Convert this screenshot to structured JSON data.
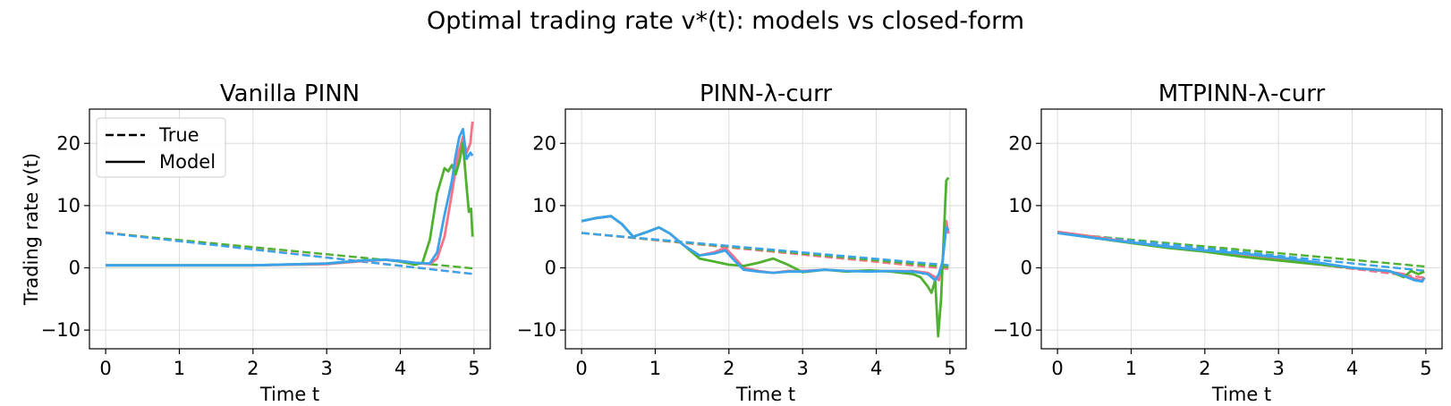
{
  "figure": {
    "suptitle": "Optimal trading rate v*(t): models vs closed-form"
  },
  "legend": {
    "true_label": "True",
    "model_label": "Model"
  },
  "colors": {
    "c1": "#f77189",
    "c2": "#50b131",
    "c3": "#3ba3ec"
  },
  "chart_data": [
    {
      "type": "line",
      "title": "Vanilla PINN",
      "xlabel": "Time t",
      "ylabel": "Trading rate v(t)",
      "xlim": [
        -0.22,
        5.22
      ],
      "ylim": [
        -13,
        25.5
      ],
      "xticks": [
        0,
        1,
        2,
        3,
        4,
        5
      ],
      "yticks": [
        -10,
        0,
        10,
        20
      ],
      "grid": true,
      "legend": "top-left",
      "series": [
        {
          "kind": "true",
          "color": "#f77189",
          "x": [
            0,
            5
          ],
          "y": [
            5.7,
            -1.0
          ]
        },
        {
          "kind": "true",
          "color": "#50b131",
          "x": [
            0,
            5
          ],
          "y": [
            5.6,
            -0.1
          ]
        },
        {
          "kind": "true",
          "color": "#3ba3ec",
          "x": [
            0,
            5
          ],
          "y": [
            5.6,
            -1.0
          ]
        },
        {
          "kind": "model",
          "color": "#f77189",
          "x": [
            0,
            1,
            2,
            3,
            3.5,
            3.8,
            4.0,
            4.2,
            4.4,
            4.5,
            4.6,
            4.7,
            4.78,
            4.85,
            4.9,
            4.95,
            4.98
          ],
          "y": [
            0.4,
            0.4,
            0.4,
            0.6,
            1.1,
            1.3,
            1.1,
            0.8,
            0.6,
            1.5,
            5.0,
            12.0,
            18.0,
            21.0,
            18.5,
            20.0,
            23.5
          ]
        },
        {
          "kind": "model",
          "color": "#50b131",
          "x": [
            0,
            1,
            2,
            3,
            3.5,
            3.8,
            4.0,
            4.2,
            4.3,
            4.4,
            4.5,
            4.55,
            4.6,
            4.65,
            4.7,
            4.75,
            4.8,
            4.85,
            4.9,
            4.93,
            4.96,
            4.98
          ],
          "y": [
            0.4,
            0.4,
            0.4,
            0.7,
            1.2,
            1.3,
            1.0,
            0.5,
            0.8,
            4.5,
            12.0,
            14.0,
            16.0,
            15.5,
            16.5,
            15.0,
            17.0,
            20.0,
            13.0,
            9.0,
            9.5,
            5.0
          ]
        },
        {
          "kind": "model",
          "color": "#3ba3ec",
          "x": [
            0,
            1,
            2,
            3,
            3.5,
            3.8,
            4.0,
            4.2,
            4.4,
            4.5,
            4.6,
            4.7,
            4.75,
            4.8,
            4.85,
            4.9,
            4.95,
            4.98
          ],
          "y": [
            0.4,
            0.4,
            0.4,
            0.7,
            1.2,
            1.3,
            1.1,
            0.8,
            0.7,
            2.5,
            8.5,
            14.0,
            18.0,
            21.0,
            22.3,
            17.5,
            18.5,
            18.0
          ]
        }
      ]
    },
    {
      "type": "line",
      "title": "PINN-λ-curr",
      "xlabel": "Time t",
      "ylabel": "",
      "xlim": [
        -0.22,
        5.22
      ],
      "ylim": [
        -13,
        25.5
      ],
      "xticks": [
        0,
        1,
        2,
        3,
        4,
        5
      ],
      "yticks": [
        -10,
        0,
        10,
        20
      ],
      "grid": true,
      "legend": "",
      "series": [
        {
          "kind": "true",
          "color": "#f77189",
          "x": [
            0,
            5
          ],
          "y": [
            5.6,
            -0.2
          ]
        },
        {
          "kind": "true",
          "color": "#50b131",
          "x": [
            0,
            5
          ],
          "y": [
            5.6,
            0.1
          ]
        },
        {
          "kind": "true",
          "color": "#3ba3ec",
          "x": [
            0,
            5
          ],
          "y": [
            5.6,
            0.4
          ]
        },
        {
          "kind": "model",
          "color": "#f77189",
          "x": [
            0,
            0.2,
            0.4,
            0.55,
            0.7,
            0.9,
            1.05,
            1.2,
            1.4,
            1.6,
            1.8,
            1.95,
            2.05,
            2.2,
            2.4,
            2.6,
            2.8,
            3.0,
            3.3,
            3.6,
            3.9,
            4.2,
            4.5,
            4.7,
            4.8,
            4.85,
            4.9,
            4.95,
            4.98
          ],
          "y": [
            7.5,
            8.0,
            8.3,
            7.0,
            5.0,
            5.8,
            6.5,
            5.5,
            3.5,
            2.0,
            2.5,
            3.2,
            2.0,
            0.0,
            -0.5,
            -0.8,
            -0.5,
            -0.5,
            -0.3,
            -0.5,
            -0.5,
            -0.5,
            -0.5,
            -0.8,
            -1.5,
            -2.0,
            1.0,
            7.5,
            5.5
          ]
        },
        {
          "kind": "model",
          "color": "#50b131",
          "x": [
            0,
            0.2,
            0.4,
            0.55,
            0.7,
            0.9,
            1.05,
            1.2,
            1.4,
            1.6,
            1.8,
            2.0,
            2.2,
            2.4,
            2.6,
            2.8,
            3.0,
            3.3,
            3.6,
            3.9,
            4.2,
            4.5,
            4.6,
            4.7,
            4.75,
            4.8,
            4.84,
            4.88,
            4.92,
            4.95,
            4.98
          ],
          "y": [
            7.5,
            8.0,
            8.3,
            7.0,
            5.0,
            5.8,
            6.5,
            5.5,
            3.5,
            1.5,
            1.0,
            0.5,
            0.3,
            0.8,
            1.5,
            0.5,
            -0.7,
            -0.3,
            -0.6,
            -0.4,
            -0.6,
            -1.0,
            -1.5,
            -3.0,
            -4.0,
            -2.0,
            -11.0,
            -5.0,
            6.0,
            14.0,
            14.5
          ]
        },
        {
          "kind": "model",
          "color": "#3ba3ec",
          "x": [
            0,
            0.2,
            0.4,
            0.55,
            0.7,
            0.9,
            1.05,
            1.2,
            1.4,
            1.6,
            1.8,
            1.95,
            2.05,
            2.2,
            2.4,
            2.6,
            2.8,
            3.0,
            3.3,
            3.6,
            3.9,
            4.2,
            4.5,
            4.7,
            4.8,
            4.85,
            4.9,
            4.95,
            4.98
          ],
          "y": [
            7.5,
            8.0,
            8.3,
            7.0,
            5.0,
            5.8,
            6.5,
            5.5,
            3.5,
            2.0,
            2.3,
            2.8,
            1.5,
            -0.3,
            -0.6,
            -0.8,
            -0.6,
            -0.6,
            -0.3,
            -0.5,
            -0.6,
            -0.5,
            -0.6,
            -1.0,
            -2.0,
            -1.0,
            1.0,
            6.5,
            6.0
          ]
        }
      ]
    },
    {
      "type": "line",
      "title": "MTPINN-λ-curr",
      "xlabel": "Time t",
      "ylabel": "",
      "xlim": [
        -0.22,
        5.22
      ],
      "ylim": [
        -13,
        25.5
      ],
      "xticks": [
        0,
        1,
        2,
        3,
        4,
        5
      ],
      "yticks": [
        -10,
        0,
        10,
        20
      ],
      "grid": true,
      "legend": "",
      "series": [
        {
          "kind": "true",
          "color": "#f77189",
          "x": [
            0,
            5
          ],
          "y": [
            5.6,
            -1.6
          ]
        },
        {
          "kind": "true",
          "color": "#50b131",
          "x": [
            0,
            5
          ],
          "y": [
            5.6,
            0.2
          ]
        },
        {
          "kind": "true",
          "color": "#3ba3ec",
          "x": [
            0,
            5
          ],
          "y": [
            5.6,
            -0.5
          ]
        },
        {
          "kind": "model",
          "color": "#f77189",
          "x": [
            0,
            0.5,
            1,
            1.5,
            2,
            2.5,
            3,
            3.5,
            4,
            4.5,
            4.7,
            4.85,
            4.95,
            4.98
          ],
          "y": [
            5.8,
            5.0,
            4.1,
            3.4,
            2.8,
            2.2,
            1.6,
            0.8,
            0.0,
            -0.6,
            -1.0,
            -1.8,
            -2.0,
            -1.5
          ]
        },
        {
          "kind": "model",
          "color": "#50b131",
          "x": [
            0,
            0.5,
            1,
            1.5,
            2,
            2.5,
            3,
            3.5,
            4,
            4.5,
            4.7,
            4.8,
            4.9,
            4.98
          ],
          "y": [
            5.6,
            4.8,
            4.0,
            3.2,
            2.6,
            1.8,
            1.2,
            0.6,
            0.0,
            -0.5,
            -1.5,
            -0.5,
            -1.0,
            -0.6
          ]
        },
        {
          "kind": "model",
          "color": "#3ba3ec",
          "x": [
            0,
            0.5,
            1,
            1.5,
            2,
            2.5,
            3,
            3.5,
            4,
            4.5,
            4.7,
            4.85,
            4.95,
            4.98
          ],
          "y": [
            5.6,
            4.8,
            4.1,
            3.4,
            2.8,
            2.3,
            1.7,
            0.9,
            0.0,
            -0.5,
            -1.3,
            -2.0,
            -2.2,
            -1.6
          ]
        }
      ]
    }
  ]
}
